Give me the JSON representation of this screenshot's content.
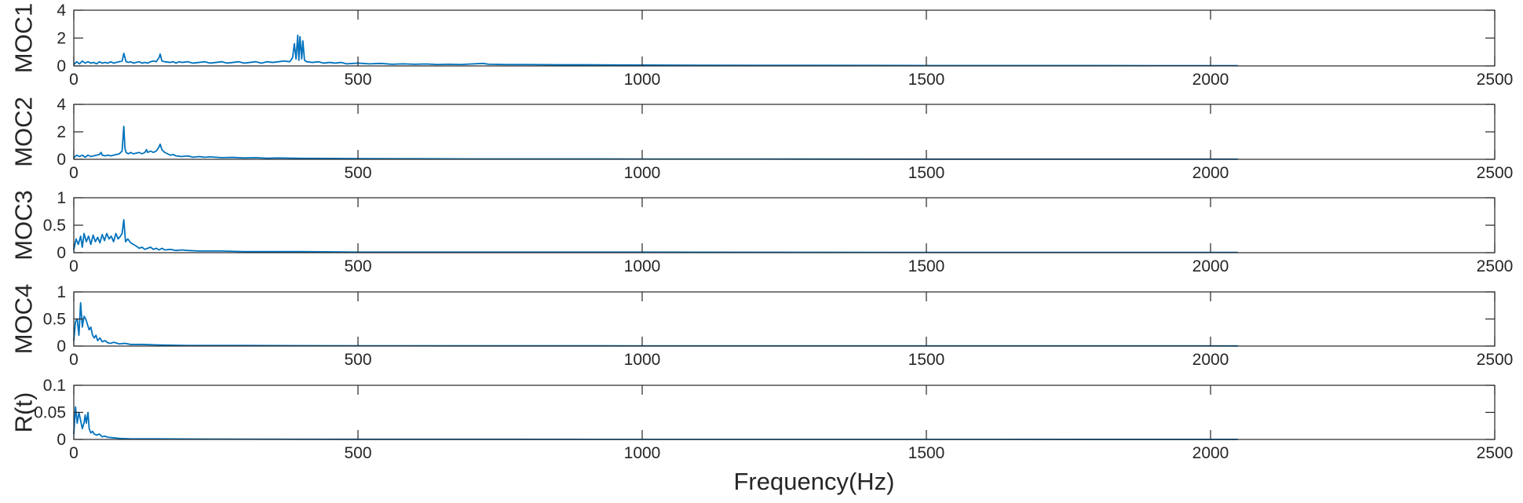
{
  "chart_data": {
    "type": "line",
    "xlabel": "Frequency(Hz)",
    "line_color": "#0072BD",
    "xlim": [
      0,
      2500
    ],
    "xticks": [
      0,
      500,
      1000,
      1500,
      2000,
      2500
    ],
    "panels": [
      {
        "ylabel": "MOC1",
        "ylim": [
          0,
          4
        ],
        "yticks": [
          0,
          2,
          4
        ],
        "points": [
          [
            0,
            0.1
          ],
          [
            5,
            0.3
          ],
          [
            10,
            0.15
          ],
          [
            15,
            0.35
          ],
          [
            20,
            0.2
          ],
          [
            25,
            0.3
          ],
          [
            30,
            0.2
          ],
          [
            35,
            0.25
          ],
          [
            40,
            0.15
          ],
          [
            45,
            0.3
          ],
          [
            50,
            0.2
          ],
          [
            55,
            0.25
          ],
          [
            60,
            0.2
          ],
          [
            65,
            0.3
          ],
          [
            70,
            0.2
          ],
          [
            75,
            0.25
          ],
          [
            80,
            0.3
          ],
          [
            85,
            0.35
          ],
          [
            88,
            0.9
          ],
          [
            92,
            0.3
          ],
          [
            96,
            0.25
          ],
          [
            100,
            0.3
          ],
          [
            105,
            0.2
          ],
          [
            110,
            0.25
          ],
          [
            115,
            0.3
          ],
          [
            120,
            0.2
          ],
          [
            125,
            0.25
          ],
          [
            130,
            0.2
          ],
          [
            135,
            0.3
          ],
          [
            140,
            0.35
          ],
          [
            145,
            0.3
          ],
          [
            150,
            0.6
          ],
          [
            152,
            0.85
          ],
          [
            155,
            0.35
          ],
          [
            160,
            0.3
          ],
          [
            170,
            0.25
          ],
          [
            175,
            0.3
          ],
          [
            180,
            0.2
          ],
          [
            185,
            0.3
          ],
          [
            190,
            0.25
          ],
          [
            200,
            0.3
          ],
          [
            210,
            0.2
          ],
          [
            220,
            0.25
          ],
          [
            230,
            0.3
          ],
          [
            240,
            0.2
          ],
          [
            250,
            0.25
          ],
          [
            260,
            0.3
          ],
          [
            270,
            0.2
          ],
          [
            280,
            0.25
          ],
          [
            290,
            0.3
          ],
          [
            300,
            0.2
          ],
          [
            310,
            0.25
          ],
          [
            320,
            0.3
          ],
          [
            330,
            0.2
          ],
          [
            340,
            0.3
          ],
          [
            350,
            0.25
          ],
          [
            360,
            0.3
          ],
          [
            370,
            0.35
          ],
          [
            380,
            0.3
          ],
          [
            385,
            0.6
          ],
          [
            388,
            1.6
          ],
          [
            391,
            0.5
          ],
          [
            394,
            2.2
          ],
          [
            396,
            0.4
          ],
          [
            398,
            2.1
          ],
          [
            401,
            0.5
          ],
          [
            403,
            1.8
          ],
          [
            406,
            0.4
          ],
          [
            410,
            0.3
          ],
          [
            420,
            0.25
          ],
          [
            430,
            0.3
          ],
          [
            440,
            0.2
          ],
          [
            450,
            0.25
          ],
          [
            460,
            0.2
          ],
          [
            470,
            0.25
          ],
          [
            480,
            0.15
          ],
          [
            500,
            0.2
          ],
          [
            520,
            0.15
          ],
          [
            540,
            0.18
          ],
          [
            560,
            0.12
          ],
          [
            580,
            0.15
          ],
          [
            600,
            0.12
          ],
          [
            620,
            0.14
          ],
          [
            640,
            0.1
          ],
          [
            660,
            0.12
          ],
          [
            680,
            0.1
          ],
          [
            700,
            0.14
          ],
          [
            720,
            0.18
          ],
          [
            730,
            0.12
          ],
          [
            760,
            0.1
          ],
          [
            800,
            0.1
          ],
          [
            850,
            0.08
          ],
          [
            900,
            0.08
          ],
          [
            950,
            0.07
          ],
          [
            1000,
            0.06
          ],
          [
            1100,
            0.05
          ],
          [
            1200,
            0.04
          ],
          [
            1300,
            0.04
          ],
          [
            1500,
            0.03
          ],
          [
            1700,
            0.03
          ],
          [
            1900,
            0.02
          ],
          [
            2048,
            0.02
          ]
        ]
      },
      {
        "ylabel": "MOC2",
        "ylim": [
          0,
          4
        ],
        "yticks": [
          0,
          2,
          4
        ],
        "points": [
          [
            0,
            0.1
          ],
          [
            5,
            0.3
          ],
          [
            10,
            0.2
          ],
          [
            15,
            0.3
          ],
          [
            20,
            0.15
          ],
          [
            25,
            0.3
          ],
          [
            30,
            0.2
          ],
          [
            35,
            0.25
          ],
          [
            40,
            0.3
          ],
          [
            45,
            0.35
          ],
          [
            48,
            0.5
          ],
          [
            50,
            0.3
          ],
          [
            55,
            0.25
          ],
          [
            60,
            0.3
          ],
          [
            65,
            0.25
          ],
          [
            70,
            0.3
          ],
          [
            75,
            0.35
          ],
          [
            80,
            0.4
          ],
          [
            85,
            0.6
          ],
          [
            88,
            2.4
          ],
          [
            90,
            0.8
          ],
          [
            92,
            0.5
          ],
          [
            96,
            0.4
          ],
          [
            100,
            0.5
          ],
          [
            105,
            0.4
          ],
          [
            110,
            0.45
          ],
          [
            115,
            0.5
          ],
          [
            120,
            0.4
          ],
          [
            125,
            0.5
          ],
          [
            128,
            0.7
          ],
          [
            130,
            0.5
          ],
          [
            135,
            0.6
          ],
          [
            140,
            0.5
          ],
          [
            145,
            0.6
          ],
          [
            150,
            0.9
          ],
          [
            152,
            1.1
          ],
          [
            155,
            0.7
          ],
          [
            160,
            0.5
          ],
          [
            165,
            0.4
          ],
          [
            170,
            0.3
          ],
          [
            175,
            0.35
          ],
          [
            180,
            0.25
          ],
          [
            190,
            0.2
          ],
          [
            200,
            0.25
          ],
          [
            210,
            0.15
          ],
          [
            220,
            0.2
          ],
          [
            230,
            0.15
          ],
          [
            240,
            0.18
          ],
          [
            260,
            0.12
          ],
          [
            280,
            0.14
          ],
          [
            300,
            0.1
          ],
          [
            320,
            0.12
          ],
          [
            340,
            0.08
          ],
          [
            360,
            0.1
          ],
          [
            400,
            0.07
          ],
          [
            450,
            0.06
          ],
          [
            500,
            0.05
          ],
          [
            600,
            0.04
          ],
          [
            700,
            0.03
          ],
          [
            800,
            0.03
          ],
          [
            1000,
            0.02
          ],
          [
            1200,
            0.02
          ],
          [
            1500,
            0.01
          ],
          [
            2048,
            0.01
          ]
        ]
      },
      {
        "ylabel": "MOC3",
        "ylim": [
          0,
          1
        ],
        "yticks": [
          0,
          0.5,
          1
        ],
        "points": [
          [
            0,
            0.05
          ],
          [
            4,
            0.25
          ],
          [
            8,
            0.15
          ],
          [
            12,
            0.3
          ],
          [
            15,
            0.1
          ],
          [
            18,
            0.35
          ],
          [
            22,
            0.2
          ],
          [
            26,
            0.3
          ],
          [
            30,
            0.15
          ],
          [
            34,
            0.32
          ],
          [
            38,
            0.2
          ],
          [
            42,
            0.28
          ],
          [
            46,
            0.18
          ],
          [
            50,
            0.33
          ],
          [
            54,
            0.22
          ],
          [
            58,
            0.35
          ],
          [
            62,
            0.25
          ],
          [
            66,
            0.3
          ],
          [
            70,
            0.2
          ],
          [
            74,
            0.35
          ],
          [
            78,
            0.25
          ],
          [
            82,
            0.3
          ],
          [
            85,
            0.35
          ],
          [
            88,
            0.6
          ],
          [
            91,
            0.2
          ],
          [
            95,
            0.25
          ],
          [
            100,
            0.18
          ],
          [
            105,
            0.15
          ],
          [
            110,
            0.12
          ],
          [
            115,
            0.08
          ],
          [
            120,
            0.1
          ],
          [
            125,
            0.06
          ],
          [
            130,
            0.08
          ],
          [
            135,
            0.1
          ],
          [
            140,
            0.06
          ],
          [
            145,
            0.08
          ],
          [
            150,
            0.05
          ],
          [
            155,
            0.08
          ],
          [
            160,
            0.05
          ],
          [
            170,
            0.06
          ],
          [
            180,
            0.04
          ],
          [
            190,
            0.05
          ],
          [
            200,
            0.04
          ],
          [
            220,
            0.03
          ],
          [
            240,
            0.03
          ],
          [
            260,
            0.03
          ],
          [
            300,
            0.02
          ],
          [
            400,
            0.02
          ],
          [
            500,
            0.01
          ],
          [
            700,
            0.01
          ],
          [
            1000,
            0.01
          ],
          [
            1500,
            0.005
          ],
          [
            2048,
            0.005
          ]
        ]
      },
      {
        "ylabel": "MOC4",
        "ylim": [
          0,
          1
        ],
        "yticks": [
          0,
          0.5,
          1
        ],
        "points": [
          [
            0,
            0.1
          ],
          [
            3,
            0.45
          ],
          [
            6,
            0.5
          ],
          [
            9,
            0.2
          ],
          [
            12,
            0.8
          ],
          [
            15,
            0.35
          ],
          [
            18,
            0.55
          ],
          [
            21,
            0.5
          ],
          [
            24,
            0.4
          ],
          [
            27,
            0.3
          ],
          [
            30,
            0.35
          ],
          [
            33,
            0.2
          ],
          [
            36,
            0.15
          ],
          [
            39,
            0.2
          ],
          [
            42,
            0.1
          ],
          [
            46,
            0.15
          ],
          [
            50,
            0.08
          ],
          [
            55,
            0.1
          ],
          [
            60,
            0.06
          ],
          [
            65,
            0.05
          ],
          [
            70,
            0.07
          ],
          [
            80,
            0.04
          ],
          [
            90,
            0.05
          ],
          [
            100,
            0.03
          ],
          [
            120,
            0.03
          ],
          [
            150,
            0.02
          ],
          [
            200,
            0.01
          ],
          [
            300,
            0.01
          ],
          [
            500,
            0.005
          ],
          [
            1000,
            0.004
          ],
          [
            2048,
            0.003
          ]
        ]
      },
      {
        "ylabel": "R(t)",
        "ylim": [
          0,
          0.1
        ],
        "yticks": [
          0,
          0.05,
          0.1
        ],
        "points": [
          [
            0,
            0.01
          ],
          [
            3,
            0.06
          ],
          [
            6,
            0.03
          ],
          [
            9,
            0.05
          ],
          [
            12,
            0.035
          ],
          [
            15,
            0.02
          ],
          [
            18,
            0.03
          ],
          [
            20,
            0.045
          ],
          [
            22,
            0.03
          ],
          [
            25,
            0.05
          ],
          [
            27,
            0.02
          ],
          [
            30,
            0.012
          ],
          [
            33,
            0.015
          ],
          [
            36,
            0.01
          ],
          [
            40,
            0.008
          ],
          [
            45,
            0.01
          ],
          [
            50,
            0.005
          ],
          [
            55,
            0.006
          ],
          [
            60,
            0.004
          ],
          [
            70,
            0.003
          ],
          [
            80,
            0.002
          ],
          [
            100,
            0.001
          ],
          [
            150,
            0.001
          ],
          [
            300,
            0.0005
          ],
          [
            500,
            0.0003
          ],
          [
            1000,
            0.0002
          ],
          [
            2048,
            0.0001
          ]
        ]
      }
    ]
  }
}
